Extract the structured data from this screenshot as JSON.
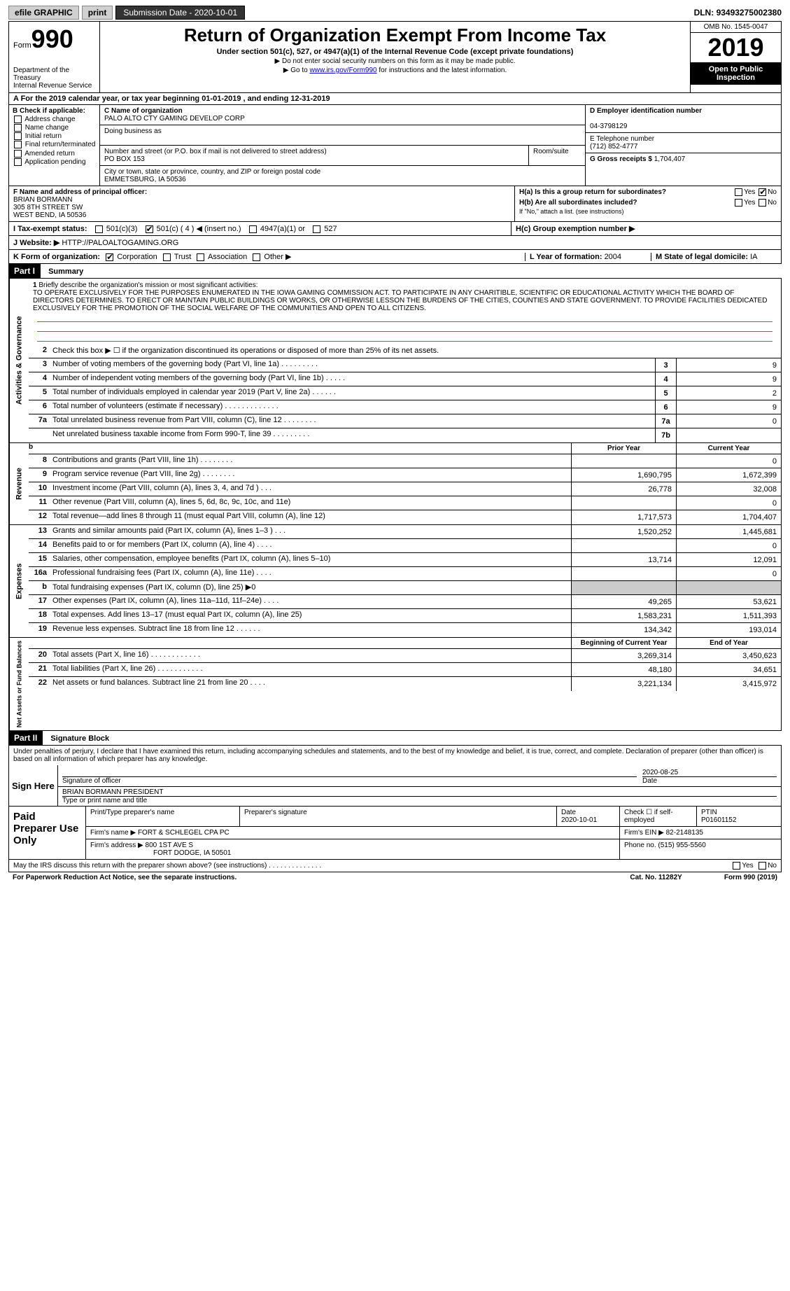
{
  "topbar": {
    "efile": "efile GRAPHIC",
    "print": "print",
    "sub_date_label": "Submission Date - ",
    "sub_date": "2020-10-01",
    "dln_label": "DLN: ",
    "dln": "93493275002380"
  },
  "header": {
    "form_word": "Form",
    "form_num": "990",
    "dept": "Department of the Treasury",
    "irs": "Internal Revenue Service",
    "title": "Return of Organization Exempt From Income Tax",
    "subtitle": "Under section 501(c), 527, or 4947(a)(1) of the Internal Revenue Code (except private foundations)",
    "note1": "▶ Do not enter social security numbers on this form as it may be made public.",
    "note2_pre": "▶ Go to ",
    "note2_link": "www.irs.gov/Form990",
    "note2_post": " for instructions and the latest information.",
    "omb": "OMB No. 1545-0047",
    "year": "2019",
    "open": "Open to Public Inspection"
  },
  "row_a": "A For the 2019 calendar year, or tax year beginning 01-01-2019    , and ending 12-31-2019",
  "col_b": {
    "label": "B Check if applicable:",
    "items": [
      "Address change",
      "Name change",
      "Initial return",
      "Final return/terminated",
      "Amended return",
      "Application pending"
    ]
  },
  "org": {
    "c_label": "C Name of organization",
    "name": "PALO ALTO CTY GAMING DEVELOP CORP",
    "dba_label": "Doing business as",
    "dba": "",
    "addr_label": "Number and street (or P.O. box if mail is not delivered to street address)",
    "room_label": "Room/suite",
    "addr": "PO BOX 153",
    "city_label": "City or town, state or province, country, and ZIP or foreign postal code",
    "city": "EMMETSBURG, IA  50536"
  },
  "right": {
    "d_label": "D Employer identification number",
    "ein": "04-3798129",
    "e_label": "E Telephone number",
    "phone": "(712) 852-4777",
    "g_label": "G Gross receipts $ ",
    "gross": "1,704,407"
  },
  "officer": {
    "f_label": "F Name and address of principal officer:",
    "name": "BRIAN BORMANN",
    "addr1": "305 8TH STREET SW",
    "addr2": "WEST BEND, IA  50536"
  },
  "h": {
    "a": "H(a)  Is this a group return for subordinates?",
    "b": "H(b)  Are all subordinates included?",
    "b_note": "If \"No,\" attach a list. (see instructions)",
    "c": "H(c)  Group exemption number ▶",
    "yes": "Yes",
    "no": "No"
  },
  "tax_status": {
    "i": "I  Tax-exempt status:",
    "opts": [
      "501(c)(3)",
      "501(c) ( 4 ) ◀ (insert no.)",
      "4947(a)(1) or",
      "527"
    ]
  },
  "website": {
    "j": "J  Website: ▶",
    "url": "HTTP://PALOALTOGAMING.ORG"
  },
  "k_row": {
    "k": "K Form of organization:",
    "opts": [
      "Corporation",
      "Trust",
      "Association",
      "Other ▶"
    ],
    "l": "L Year of formation: ",
    "l_val": "2004",
    "m": "M State of legal domicile: ",
    "m_val": "IA"
  },
  "part1": {
    "label": "Part I",
    "title": "Summary"
  },
  "mission": {
    "num": "1",
    "label": "Briefly describe the organization's mission or most significant activities:",
    "text": "TO OPERATE EXCLUSIVELY FOR THE PURPOSES ENUMERATED IN THE IOWA GAMING COMMISSION ACT. TO PARTICIPATE IN ANY CHARITIBLE, SCIENTIFIC OR EDUCATIONAL ACTIVITY WHICH THE BOARD OF DIRECTORS DETERMINES. TO ERECT OR MAINTAIN PUBLIC BUILDINGS OR WORKS, OR OTHERWISE LESSON THE BURDENS OF THE CITIES, COUNTIES AND STATE GOVERNMENT. TO PROVIDE FACILITIES DEDICATED EXCLUSIVELY FOR THE PROMOTION OF THE SOCIAL WELFARE OF THE COMMUNITIES AND OPEN TO ALL CITIZENS."
  },
  "gov_lines": [
    {
      "n": "2",
      "d": "Check this box ▶ ☐ if the organization discontinued its operations or disposed of more than 25% of its net assets.",
      "box": "",
      "v": ""
    },
    {
      "n": "3",
      "d": "Number of voting members of the governing body (Part VI, line 1a)   .    .    .    .    .    .    .    .    .",
      "box": "3",
      "v": "9"
    },
    {
      "n": "4",
      "d": "Number of independent voting members of the governing body (Part VI, line 1b)    .    .    .    .    .",
      "box": "4",
      "v": "9"
    },
    {
      "n": "5",
      "d": "Total number of individuals employed in calendar year 2019 (Part V, line 2a)   .    .    .    .    .    .",
      "box": "5",
      "v": "2"
    },
    {
      "n": "6",
      "d": "Total number of volunteers (estimate if necessary)    .    .    .    .    .    .    .    .    .    .    .    .    .",
      "box": "6",
      "v": "9"
    },
    {
      "n": "7a",
      "d": "Total unrelated business revenue from Part VIII, column (C), line 12   .    .    .    .    .    .    .    .",
      "box": "7a",
      "v": "0"
    },
    {
      "n": "",
      "d": "Net unrelated business taxable income from Form 990-T, line 39    .    .    .    .    .    .    .    .    .",
      "box": "7b",
      "v": ""
    }
  ],
  "col_hdrs": {
    "prior": "Prior Year",
    "current": "Current Year",
    "boy": "Beginning of Current Year",
    "eoy": "End of Year"
  },
  "rev_lines": [
    {
      "n": "8",
      "d": "Contributions and grants (Part VIII, line 1h)    .    .    .    .    .    .    .    .",
      "p": "",
      "c": "0"
    },
    {
      "n": "9",
      "d": "Program service revenue (Part VIII, line 2g)    .    .    .    .    .    .    .    .",
      "p": "1,690,795",
      "c": "1,672,399"
    },
    {
      "n": "10",
      "d": "Investment income (Part VIII, column (A), lines 3, 4, and 7d )    .    .    .",
      "p": "26,778",
      "c": "32,008"
    },
    {
      "n": "11",
      "d": "Other revenue (Part VIII, column (A), lines 5, 6d, 8c, 9c, 10c, and 11e)",
      "p": "",
      "c": "0"
    },
    {
      "n": "12",
      "d": "Total revenue—add lines 8 through 11 (must equal Part VIII, column (A), line 12)",
      "p": "1,717,573",
      "c": "1,704,407"
    }
  ],
  "exp_lines": [
    {
      "n": "13",
      "d": "Grants and similar amounts paid (Part IX, column (A), lines 1–3 )    .    .    .",
      "p": "1,520,252",
      "c": "1,445,681"
    },
    {
      "n": "14",
      "d": "Benefits paid to or for members (Part IX, column (A), line 4)    .    .    .    .",
      "p": "",
      "c": "0"
    },
    {
      "n": "15",
      "d": "Salaries, other compensation, employee benefits (Part IX, column (A), lines 5–10)",
      "p": "13,714",
      "c": "12,091"
    },
    {
      "n": "16a",
      "d": "Professional fundraising fees (Part IX, column (A), line 11e)    .    .    .    .",
      "p": "",
      "c": "0"
    },
    {
      "n": "b",
      "d": "Total fundraising expenses (Part IX, column (D), line 25) ▶0",
      "p": "shade",
      "c": "shade"
    },
    {
      "n": "17",
      "d": "Other expenses (Part IX, column (A), lines 11a–11d, 11f–24e)    .    .    .    .",
      "p": "49,265",
      "c": "53,621"
    },
    {
      "n": "18",
      "d": "Total expenses. Add lines 13–17 (must equal Part IX, column (A), line 25)",
      "p": "1,583,231",
      "c": "1,511,393"
    },
    {
      "n": "19",
      "d": "Revenue less expenses. Subtract line 18 from line 12   .    .    .    .    .    .",
      "p": "134,342",
      "c": "193,014"
    }
  ],
  "net_lines": [
    {
      "n": "20",
      "d": "Total assets (Part X, line 16)    .    .    .    .    .    .    .    .    .    .    .    .",
      "p": "3,269,314",
      "c": "3,450,623"
    },
    {
      "n": "21",
      "d": "Total liabilities (Part X, line 26)    .    .    .    .    .    .    .    .    .    .    .",
      "p": "48,180",
      "c": "34,651"
    },
    {
      "n": "22",
      "d": "Net assets or fund balances. Subtract line 21 from line 20    .    .    .    .",
      "p": "3,221,134",
      "c": "3,415,972"
    }
  ],
  "side_labels": {
    "gov": "Activities & Governance",
    "rev": "Revenue",
    "exp": "Expenses",
    "net": "Net Assets or Fund Balances"
  },
  "part2": {
    "label": "Part II",
    "title": "Signature Block"
  },
  "declare": "Under penalties of perjury, I declare that I have examined this return, including accompanying schedules and statements, and to the best of my knowledge and belief, it is true, correct, and complete. Declaration of preparer (other than officer) is based on all information of which preparer has any knowledge.",
  "sign": {
    "here": "Sign Here",
    "sig_label": "Signature of officer",
    "date": "2020-08-25",
    "date_label": "Date",
    "name": "BRIAN BORMANN  PRESIDENT",
    "name_label": "Type or print name and title"
  },
  "prep": {
    "title": "Paid Preparer Use Only",
    "print_label": "Print/Type preparer's name",
    "sig_label": "Preparer's signature",
    "date_label": "Date",
    "date": "2020-10-01",
    "check_label": "Check ☐ if self-employed",
    "ptin_label": "PTIN",
    "ptin": "P01601152",
    "firm_name_label": "Firm's name    ▶ ",
    "firm_name": "FORT & SCHLEGEL CPA PC",
    "firm_ein_label": "Firm's EIN ▶ ",
    "firm_ein": "82-2148135",
    "firm_addr_label": "Firm's address ▶ ",
    "firm_addr1": "800 1ST AVE S",
    "firm_addr2": "FORT DODGE, IA  50501",
    "phone_label": "Phone no. ",
    "phone": "(515) 955-5560"
  },
  "footer": {
    "discuss": "May the IRS discuss this return with the preparer shown above? (see instructions)    .    .    .    .    .    .    .    .    .    .    .    .    .    .",
    "yes": "Yes",
    "no": "No",
    "pra": "For Paperwork Reduction Act Notice, see the separate instructions.",
    "cat": "Cat. No. 11282Y",
    "form": "Form 990 (2019)"
  }
}
